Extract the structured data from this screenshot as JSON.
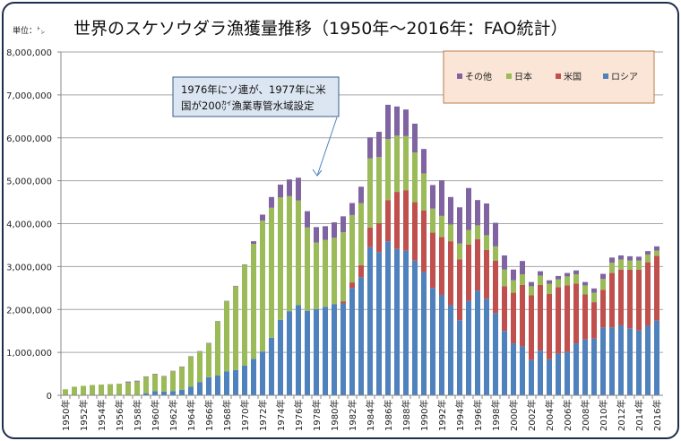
{
  "chart_data": {
    "type": "bar",
    "stacked": true,
    "title": "世界のスケソウダラ漁獲量推移（1950年～2016年：FAO統計）",
    "unit_label": "単位：㌧",
    "xlabel": "",
    "ylabel": "",
    "ylim": [
      0,
      8000000
    ],
    "yticks": [
      "0",
      "1,000,000",
      "2,000,000",
      "3,000,000",
      "4,000,000",
      "5,000,000",
      "6,000,000",
      "7,000,000",
      "8,000,000"
    ],
    "ytick_values": [
      0,
      1000000,
      2000000,
      3000000,
      4000000,
      5000000,
      6000000,
      7000000,
      8000000
    ],
    "grid": true,
    "legend_position": "top-right",
    "annotation": {
      "lines": [
        "1976年にソ連が、1977年に米",
        "国が200㌋漁業専管水域設定"
      ]
    },
    "categories": [
      "1950年",
      "1951年",
      "1952年",
      "1953年",
      "1954年",
      "1955年",
      "1956年",
      "1957年",
      "1958年",
      "1959年",
      "1960年",
      "1961年",
      "1962年",
      "1963年",
      "1964年",
      "1965年",
      "1966年",
      "1967年",
      "1968年",
      "1969年",
      "1970年",
      "1971年",
      "1972年",
      "1973年",
      "1974年",
      "1975年",
      "1976年",
      "1977年",
      "1978年",
      "1979年",
      "1980年",
      "1981年",
      "1982年",
      "1983年",
      "1984年",
      "1985年",
      "1986年",
      "1987年",
      "1988年",
      "1989年",
      "1990年",
      "1991年",
      "1992年",
      "1993年",
      "1994年",
      "1995年",
      "1996年",
      "1997年",
      "1998年",
      "1999年",
      "2000年",
      "2001年",
      "2002年",
      "2003年",
      "2004年",
      "2005年",
      "2006年",
      "2007年",
      "2008年",
      "2009年",
      "2010年",
      "2011年",
      "2012年",
      "2013年",
      "2014年",
      "2015年",
      "2016年"
    ],
    "series": [
      {
        "name": "ロシア",
        "color": "#4f81bd",
        "values": [
          0,
          0,
          0,
          0,
          0,
          0,
          0,
          0,
          0,
          50000,
          100000,
          90000,
          100000,
          130000,
          200000,
          310000,
          420000,
          460000,
          560000,
          590000,
          690000,
          850000,
          1020000,
          1340000,
          1760000,
          1960000,
          2100000,
          1970000,
          2010000,
          2060000,
          2120000,
          2140000,
          2500000,
          2750000,
          3450000,
          3340000,
          3590000,
          3410000,
          3370000,
          3140000,
          2870000,
          2500000,
          2340000,
          2100000,
          1750000,
          2200000,
          2440000,
          2250000,
          1920000,
          1500000,
          1210000,
          1140000,
          820000,
          1040000,
          840000,
          970000,
          1010000,
          1210000,
          1300000,
          1320000,
          1580000,
          1580000,
          1630000,
          1560000,
          1510000,
          1620000,
          1740000
        ]
      },
      {
        "name": "米国",
        "color": "#c0504d",
        "values": [
          0,
          0,
          0,
          0,
          0,
          0,
          0,
          0,
          0,
          0,
          0,
          0,
          0,
          0,
          0,
          0,
          0,
          0,
          0,
          0,
          0,
          0,
          0,
          0,
          0,
          0,
          0,
          0,
          0,
          0,
          0,
          50000,
          130000,
          280000,
          460000,
          670000,
          960000,
          1330000,
          1410000,
          1360000,
          1440000,
          1290000,
          1350000,
          1490000,
          1420000,
          1310000,
          1200000,
          1140000,
          1220000,
          1040000,
          1180000,
          1430000,
          1510000,
          1530000,
          1520000,
          1550000,
          1550000,
          1390000,
          1050000,
          850000,
          880000,
          1270000,
          1300000,
          1370000,
          1420000,
          1480000,
          1510000
        ]
      },
      {
        "name": "日本",
        "color": "#9bbb59",
        "values": [
          140000,
          200000,
          220000,
          240000,
          250000,
          260000,
          270000,
          300000,
          320000,
          380000,
          390000,
          350000,
          460000,
          530000,
          700000,
          710000,
          790000,
          1260000,
          1630000,
          1950000,
          2350000,
          2680000,
          3050000,
          3030000,
          2850000,
          2680000,
          2440000,
          1940000,
          1550000,
          1560000,
          1550000,
          1610000,
          1570000,
          1450000,
          1610000,
          1540000,
          1420000,
          1310000,
          1260000,
          1160000,
          860000,
          560000,
          490000,
          390000,
          370000,
          340000,
          320000,
          340000,
          330000,
          390000,
          290000,
          250000,
          210000,
          220000,
          240000,
          180000,
          210000,
          220000,
          210000,
          220000,
          250000,
          240000,
          230000,
          210000,
          210000,
          180000,
          120000
        ]
      },
      {
        "name": "その他",
        "color": "#8064a2",
        "values": [
          0,
          0,
          0,
          0,
          0,
          0,
          0,
          20000,
          20000,
          10000,
          10000,
          10000,
          10000,
          10000,
          10000,
          10000,
          10000,
          10000,
          10000,
          10000,
          10000,
          60000,
          140000,
          250000,
          300000,
          390000,
          530000,
          380000,
          360000,
          320000,
          360000,
          370000,
          280000,
          380000,
          490000,
          590000,
          800000,
          680000,
          620000,
          670000,
          570000,
          550000,
          830000,
          640000,
          840000,
          980000,
          590000,
          740000,
          550000,
          330000,
          250000,
          310000,
          100000,
          100000,
          80000,
          80000,
          80000,
          90000,
          80000,
          100000,
          120000,
          120000,
          100000,
          100000,
          90000,
          80000,
          100000
        ]
      }
    ],
    "legend_order": [
      "その他",
      "日本",
      "米国",
      "ロシア"
    ]
  }
}
